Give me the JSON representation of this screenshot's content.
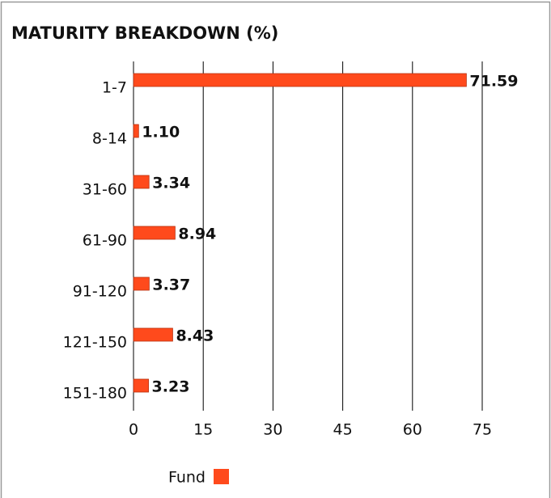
{
  "chart_data": {
    "type": "bar",
    "orientation": "horizontal",
    "title": "MATURITY BREAKDOWN (%)",
    "categories": [
      "1-7",
      "8-14",
      "31-60",
      "61-90",
      "91-120",
      "121-150",
      "151-180"
    ],
    "series": [
      {
        "name": "Fund",
        "color": "#ff4a1c",
        "values": [
          71.59,
          1.1,
          3.34,
          8.94,
          3.37,
          8.43,
          3.23
        ],
        "value_labels": [
          "71.59",
          "1.10",
          "3.34",
          "8.94",
          "3.37",
          "8.43",
          "3.23"
        ]
      }
    ],
    "xlim": [
      0,
      75
    ],
    "xticks": [
      0,
      15,
      30,
      45,
      60,
      75
    ],
    "grid": true,
    "legend": "bottom"
  }
}
